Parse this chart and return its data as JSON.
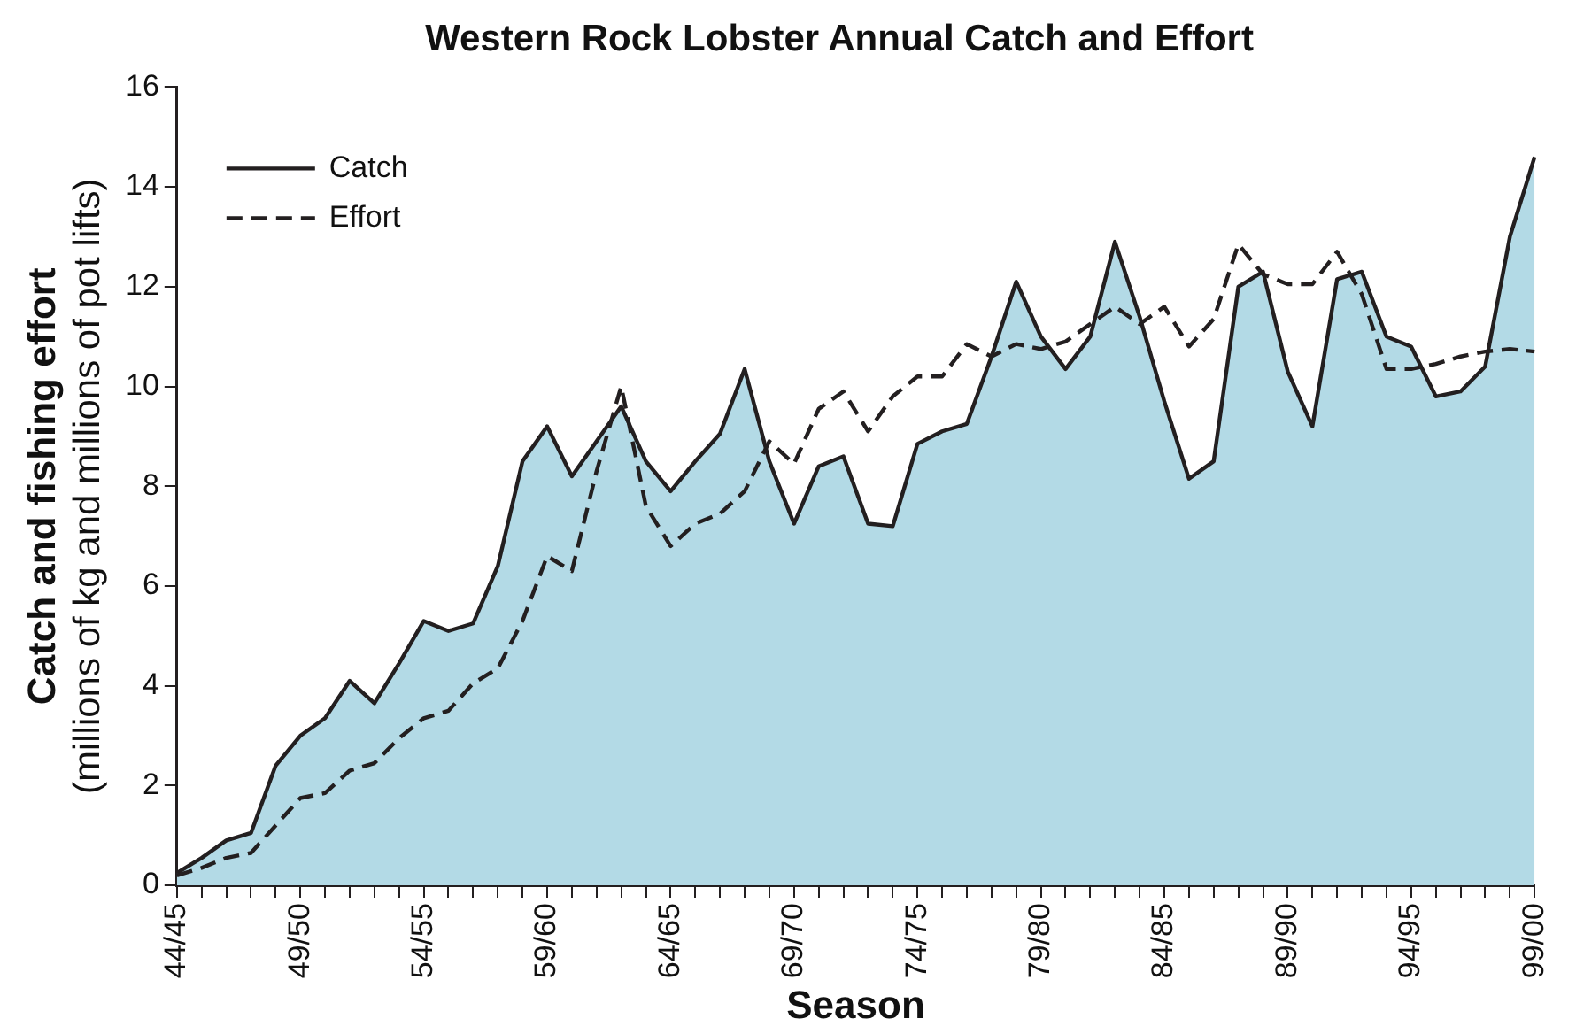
{
  "chart_data": {
    "type": "area",
    "title": "Western Rock Lobster Annual Catch and Effort",
    "xlabel": "Season",
    "ylabel": "Catch and fishing effort\n(millions of kg and millions of pot lifts)",
    "categories": [
      "44/45",
      null,
      null,
      null,
      null,
      "49/50",
      null,
      null,
      null,
      null,
      "54/55",
      null,
      null,
      null,
      null,
      "59/60",
      null,
      null,
      null,
      null,
      "64/65",
      null,
      null,
      null,
      null,
      "69/70",
      null,
      null,
      null,
      null,
      "74/75",
      null,
      null,
      null,
      null,
      "79/80",
      null,
      null,
      null,
      null,
      "84/85",
      null,
      null,
      null,
      null,
      "89/90",
      null,
      null,
      null,
      null,
      "94/95",
      null,
      null,
      null,
      null,
      "99/00"
    ],
    "series": [
      {
        "name": "Catch",
        "type": "area",
        "color": "#b3dae6",
        "values": [
          0.25,
          0.55,
          0.9,
          1.05,
          2.4,
          3.0,
          3.35,
          4.1,
          3.65,
          4.45,
          5.3,
          5.1,
          5.25,
          6.4,
          8.5,
          9.2,
          8.2,
          8.9,
          9.6,
          8.5,
          7.9,
          8.5,
          9.05,
          10.35,
          8.5,
          7.25,
          8.4,
          8.6,
          7.25,
          7.2,
          8.85,
          9.1,
          9.25,
          10.6,
          12.1,
          11.0,
          10.35,
          11.0,
          12.9,
          11.4,
          9.7,
          8.15,
          8.5,
          12.0,
          12.3,
          10.3,
          9.2,
          12.15,
          12.3,
          11.0,
          10.8,
          9.8,
          9.9,
          10.4,
          13.0,
          14.6
        ]
      },
      {
        "name": "Effort",
        "type": "line",
        "color": "#231f20",
        "line_style": "dashed",
        "values": [
          0.2,
          0.35,
          0.55,
          0.65,
          1.2,
          1.75,
          1.85,
          2.3,
          2.45,
          2.95,
          3.35,
          3.5,
          4.05,
          4.35,
          5.3,
          6.6,
          6.3,
          8.3,
          10.0,
          7.6,
          6.8,
          7.25,
          7.45,
          7.9,
          8.9,
          8.45,
          9.55,
          9.9,
          9.1,
          9.8,
          10.2,
          10.2,
          10.85,
          10.6,
          10.85,
          10.75,
          10.9,
          11.25,
          11.6,
          11.25,
          11.6,
          10.8,
          11.35,
          12.85,
          12.25,
          12.05,
          12.05,
          12.7,
          11.85,
          10.35,
          10.35,
          10.45,
          10.6,
          10.7,
          10.75,
          10.7
        ]
      }
    ],
    "ylim": [
      0,
      16
    ],
    "yticks": [
      0,
      2,
      4,
      6,
      8,
      10,
      12,
      14,
      16
    ],
    "legend": "top left",
    "marker": "none",
    "grid": false
  }
}
